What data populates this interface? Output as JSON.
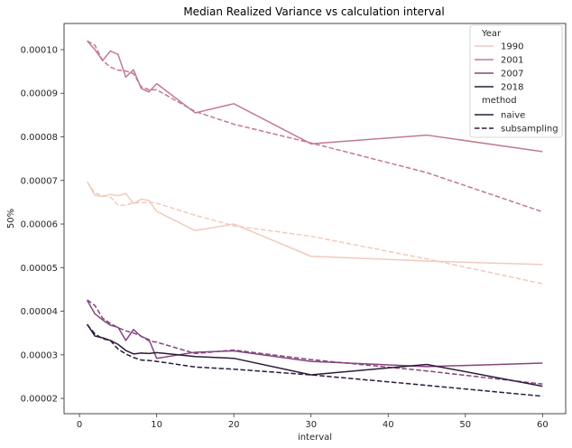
{
  "chart_data": {
    "type": "line",
    "title": "Median Realized Variance vs calculation interval",
    "xlabel": "interval",
    "ylabel": "50%",
    "xlim": [
      -2,
      63
    ],
    "ylim": [
      1.65e-05,
      0.000106
    ],
    "xticks": [
      0,
      10,
      20,
      30,
      40,
      50,
      60
    ],
    "xtick_labels": [
      "0",
      "10",
      "20",
      "30",
      "40",
      "50",
      "60"
    ],
    "yticks": [
      2e-05,
      3e-05,
      4e-05,
      5e-05,
      6e-05,
      7e-05,
      8e-05,
      9e-05,
      0.0001
    ],
    "ytick_labels": [
      "0.00002",
      "0.00003",
      "0.00004",
      "0.00005",
      "0.00006",
      "0.00007",
      "0.00008",
      "0.00009",
      "0.00010"
    ],
    "grid": false,
    "legend": {
      "position": "top-right",
      "hue_title": "Year",
      "style_title": "method",
      "years": [
        {
          "label": "1990",
          "color": "#f0cbbd"
        },
        {
          "label": "2001",
          "color": "#c27a8f"
        },
        {
          "label": "2007",
          "color": "#86457f"
        },
        {
          "label": "2018",
          "color": "#2c1b3b"
        }
      ],
      "methods": [
        {
          "label": "naive",
          "dash": "solid"
        },
        {
          "label": "subsampling",
          "dash": "dashed"
        }
      ]
    },
    "series": [
      {
        "year": "1990",
        "method": "naive",
        "color": "#f0cbbd",
        "dash": "solid",
        "x": [
          1,
          2,
          3,
          4,
          5,
          6,
          7,
          8,
          9,
          10,
          15,
          20,
          30,
          45,
          60
        ],
        "y": [
          6.97e-05,
          6.66e-05,
          6.63e-05,
          6.68e-05,
          6.65e-05,
          6.7e-05,
          6.47e-05,
          6.57e-05,
          6.54e-05,
          6.29e-05,
          5.85e-05,
          6e-05,
          5.26e-05,
          5.15e-05,
          5.07e-05
        ]
      },
      {
        "year": "1990",
        "method": "subsampling",
        "color": "#f0cbbd",
        "dash": "dashed",
        "x": [
          1,
          2,
          3,
          4,
          5,
          6,
          7,
          8,
          9,
          10,
          15,
          20,
          30,
          45,
          60
        ],
        "y": [
          6.97e-05,
          6.71e-05,
          6.66e-05,
          6.62e-05,
          6.43e-05,
          6.43e-05,
          6.49e-05,
          6.49e-05,
          6.5e-05,
          6.48e-05,
          6.2e-05,
          5.96e-05,
          5.72e-05,
          5.2e-05,
          4.63e-05
        ]
      },
      {
        "year": "2001",
        "method": "naive",
        "color": "#c27a8f",
        "dash": "solid",
        "x": [
          1,
          2,
          3,
          4,
          5,
          6,
          7,
          8,
          9,
          10,
          15,
          20,
          30,
          45,
          60
        ],
        "y": [
          0.000102,
          0.0001,
          9.75e-05,
          9.97e-05,
          9.89e-05,
          9.37e-05,
          9.54e-05,
          9.11e-05,
          9.03e-05,
          9.22e-05,
          8.55e-05,
          8.76e-05,
          7.84e-05,
          8.04e-05,
          7.66e-05
        ]
      },
      {
        "year": "2001",
        "method": "subsampling",
        "color": "#c27a8f",
        "dash": "dashed",
        "x": [
          1,
          2,
          3,
          4,
          5,
          6,
          7,
          8,
          9,
          10,
          15,
          20,
          30,
          45,
          60
        ],
        "y": [
          0.000102,
          0.000101,
          9.75e-05,
          9.6e-05,
          9.53e-05,
          9.51e-05,
          9.45e-05,
          9.15e-05,
          9.08e-05,
          9.08e-05,
          8.58e-05,
          8.29e-05,
          7.86e-05,
          7.18e-05,
          6.28e-05
        ]
      },
      {
        "year": "2007",
        "method": "naive",
        "color": "#86457f",
        "dash": "solid",
        "x": [
          1,
          2,
          3,
          4,
          5,
          6,
          7,
          8,
          9,
          10,
          15,
          20,
          30,
          45,
          60
        ],
        "y": [
          4.25e-05,
          3.94e-05,
          3.8e-05,
          3.68e-05,
          3.63e-05,
          3.33e-05,
          3.58e-05,
          3.42e-05,
          3.35e-05,
          2.92e-05,
          3.06e-05,
          3.09e-05,
          2.85e-05,
          2.73e-05,
          2.81e-05
        ]
      },
      {
        "year": "2007",
        "method": "subsampling",
        "color": "#86457f",
        "dash": "dashed",
        "x": [
          1,
          2,
          3,
          4,
          5,
          6,
          7,
          8,
          9,
          10,
          15,
          20,
          30,
          45,
          60
        ],
        "y": [
          4.26e-05,
          4.13e-05,
          3.84e-05,
          3.72e-05,
          3.62e-05,
          3.55e-05,
          3.5e-05,
          3.43e-05,
          3.32e-05,
          3.29e-05,
          3.03e-05,
          3.11e-05,
          2.89e-05,
          2.63e-05,
          2.33e-05
        ]
      },
      {
        "year": "2018",
        "method": "naive",
        "color": "#2c1b3b",
        "dash": "solid",
        "x": [
          1,
          2,
          3,
          4,
          5,
          6,
          7,
          8,
          9,
          10,
          15,
          20,
          30,
          45,
          60
        ],
        "y": [
          3.7e-05,
          3.43e-05,
          3.39e-05,
          3.33e-05,
          3.24e-05,
          3.1e-05,
          3.02e-05,
          3.04e-05,
          3.03e-05,
          3.05e-05,
          2.96e-05,
          2.92e-05,
          2.54e-05,
          2.78e-05,
          2.28e-05
        ]
      },
      {
        "year": "2018",
        "method": "subsampling",
        "color": "#2c1b3b",
        "dash": "dashed",
        "x": [
          1,
          2,
          3,
          4,
          5,
          6,
          7,
          8,
          9,
          10,
          15,
          20,
          30,
          45,
          60
        ],
        "y": [
          3.69e-05,
          3.48e-05,
          3.37e-05,
          3.33e-05,
          3.13e-05,
          3.02e-05,
          2.94e-05,
          2.88e-05,
          2.87e-05,
          2.85e-05,
          2.72e-05,
          2.67e-05,
          2.54e-05,
          2.3e-05,
          2.05e-05
        ]
      }
    ]
  }
}
